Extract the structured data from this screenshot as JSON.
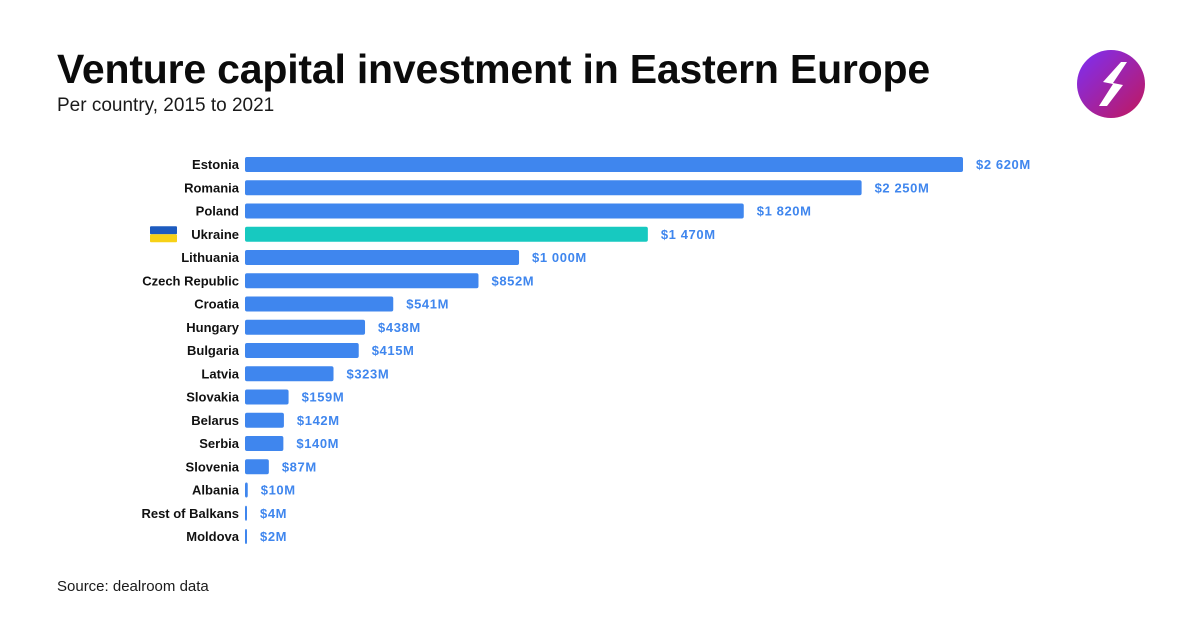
{
  "header": {
    "title": "Venture capital investment in Eastern Europe",
    "subtitle": "Per country, 2015 to 2021"
  },
  "footer": {
    "source": "Source: dealroom data"
  },
  "logo": {
    "icon": "lightning-s-logo-icon",
    "gradient": [
      "#7b2ff7",
      "#c2185b"
    ]
  },
  "colors": {
    "bar": "#3f86ee",
    "highlight_bar": "#17c9c0",
    "value_label": "#3f86ee",
    "flag_top": "#1d5bbf",
    "flag_bottom": "#f7d117"
  },
  "chart_data": {
    "type": "bar",
    "orientation": "horizontal",
    "title": "Venture capital investment in Eastern Europe",
    "subtitle": "Per country, 2015 to 2021",
    "categories": [
      "Estonia",
      "Romania",
      "Poland",
      "Ukraine",
      "Lithuania",
      "Czech Republic",
      "Croatia",
      "Hungary",
      "Bulgaria",
      "Latvia",
      "Slovakia",
      "Belarus",
      "Serbia",
      "Slovenia",
      "Albania",
      "Rest of Balkans",
      "Moldova"
    ],
    "values": [
      2620,
      2250,
      1820,
      1470,
      1000,
      852,
      541,
      438,
      415,
      323,
      159,
      142,
      140,
      87,
      10,
      4,
      2
    ],
    "value_labels": [
      "$2 620M",
      "$2 250M",
      "$1 820M",
      "$1 470M",
      "$1 000M",
      "$852M",
      "$541M",
      "$438M",
      "$415M",
      "$323M",
      "$159M",
      "$142M",
      "$140M",
      "$87M",
      "$10M",
      "$4M",
      "$2M"
    ],
    "unit": "$M",
    "highlight": "Ukraine",
    "flag_icon_for": "Ukraine",
    "xlim": [
      0,
      2620
    ],
    "grid": false,
    "legend": "none"
  }
}
